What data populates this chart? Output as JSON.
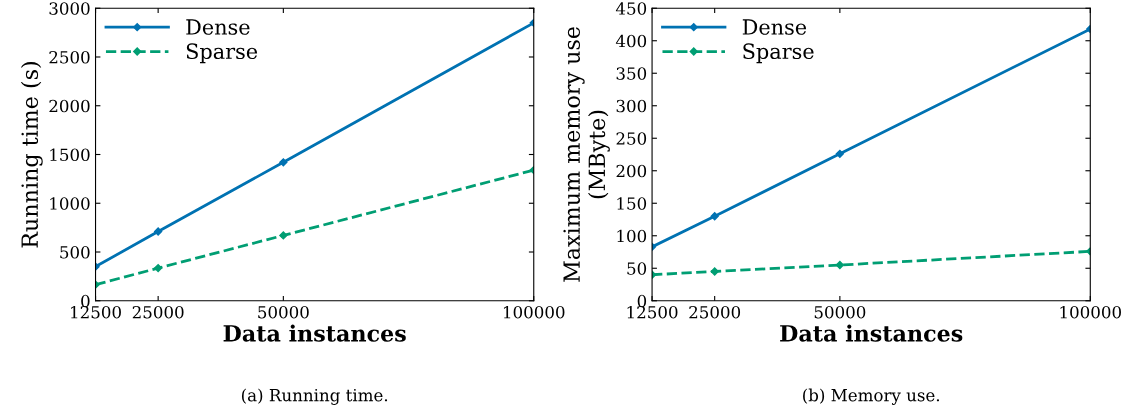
{
  "chart_data": [
    {
      "type": "line",
      "xlabel": "Data instances",
      "ylabel": "Running time (s)",
      "x": [
        12500,
        25000,
        50000,
        100000
      ],
      "xlim": [
        12500,
        100000
      ],
      "xticks": [
        12500,
        25000,
        50000,
        100000
      ],
      "ylim": [
        0,
        3000
      ],
      "yticks": [
        0,
        500,
        1000,
        1500,
        2000,
        2500,
        3000
      ],
      "legend": "top left",
      "marker": "diamond",
      "grid": false,
      "annotations": [
        "(a) Running time."
      ],
      "series": [
        {
          "name": "Dense",
          "color": "#0072b2",
          "values": [
            350,
            710,
            1420,
            2850
          ],
          "line_style": "solid"
        },
        {
          "name": "Sparse",
          "color": "#009e73",
          "values": [
            165,
            335,
            670,
            1340
          ],
          "line_style": "dashed"
        }
      ]
    },
    {
      "type": "line",
      "xlabel": "Data instances",
      "ylabel": "Maximum memory use\n(MByte)",
      "x": [
        12500,
        25000,
        50000,
        100000
      ],
      "xlim": [
        12500,
        100000
      ],
      "xticks": [
        12500,
        25000,
        50000,
        100000
      ],
      "ylim": [
        0,
        450
      ],
      "yticks": [
        0,
        50,
        100,
        150,
        200,
        250,
        300,
        350,
        400,
        450
      ],
      "legend": "top left",
      "marker": "diamond",
      "grid": false,
      "annotations": [
        "(b) Memory use."
      ],
      "series": [
        {
          "name": "Dense",
          "color": "#0072b2",
          "values": [
            83,
            130,
            226,
            418
          ],
          "line_style": "solid"
        },
        {
          "name": "Sparse",
          "color": "#009e73",
          "values": [
            40,
            45,
            55,
            76
          ],
          "line_style": "dashed"
        }
      ]
    }
  ]
}
